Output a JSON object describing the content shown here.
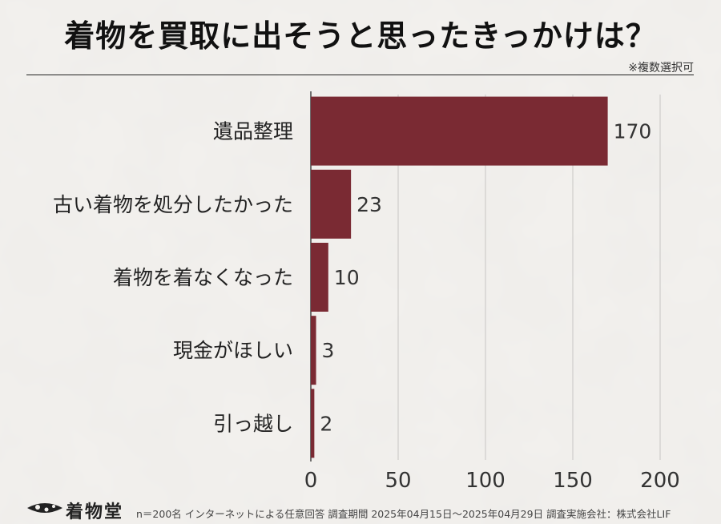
{
  "title": "着物を買取に出そうと思ったきっかけは？",
  "note": "※複数選択可",
  "footer": "n＝200名 インターネットによる任意回答 調査期間 2025年04月15日〜2025年04月29日 調査実施会社：株式会社LIF",
  "logo_text": "着物堂",
  "colors": {
    "bar": "#7a2a33",
    "background": "#f3f1ee",
    "grid": "#c8c6c3"
  },
  "chart_data": {
    "type": "bar",
    "orientation": "horizontal",
    "categories": [
      "遺品整理",
      "古い着物を処分したかった",
      "着物を着なくなった",
      "現金がほしい",
      "引っ越し"
    ],
    "values": [
      170,
      23,
      10,
      3,
      2
    ],
    "xlim": [
      0,
      200
    ],
    "xticks": [
      0,
      50,
      100,
      150,
      200
    ],
    "title": "着物を買取に出そうと思ったきっかけは？",
    "xlabel": "",
    "ylabel": "",
    "grid": true,
    "data_labels": true
  }
}
